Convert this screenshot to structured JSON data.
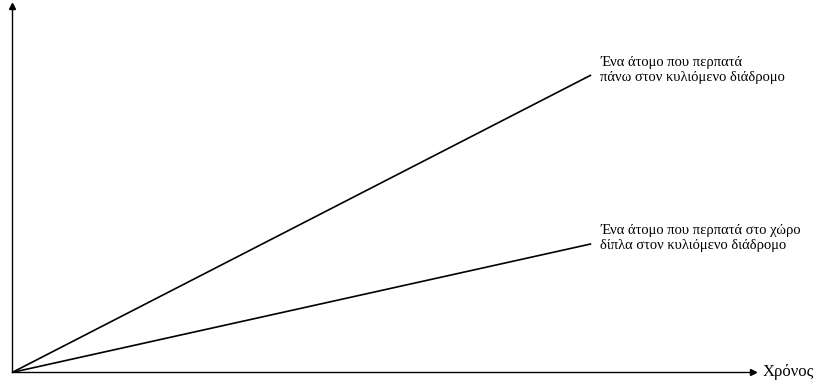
{
  "chart_data": {
    "type": "line",
    "x_label": "Χρόνος",
    "x": [
      0,
      78
    ],
    "series": [
      {
        "name": "Ένα άτομο που περπατά\nπάνω στον κυλιόμενο διάδρομο",
        "color": "#000000",
        "values": [
          0,
          81
        ]
      },
      {
        "name": "Ένα άτομο που περπατά στο χώρο\nδίπλα στον κυλιόμενο διάδρομο",
        "color": "#000000",
        "values": [
          0,
          35
        ]
      }
    ],
    "xlim": [
      0,
      100
    ],
    "ylim": [
      0,
      100
    ],
    "tick_labels": false,
    "grid": false
  }
}
